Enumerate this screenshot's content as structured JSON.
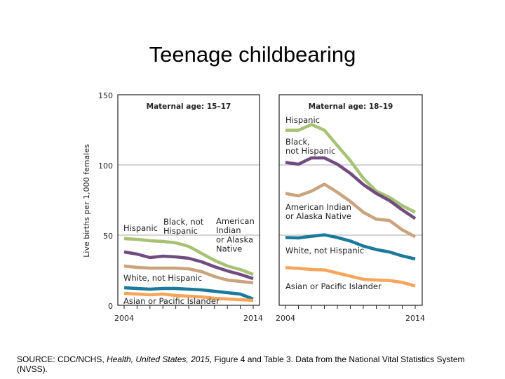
{
  "title": "Teenage childbearing",
  "source": {
    "prefix": "SOURCE: CDC/NCHS, ",
    "italic": "Health, United States, 2015",
    "suffix": ", Figure 4 and Table 3. Data from the National Vital Statistics System (NVSS)."
  },
  "chart_data": {
    "type": "line",
    "ylabel": "Live births per 1,000 females",
    "ylim": [
      0,
      150
    ],
    "yticks": [
      0,
      50,
      100,
      150
    ],
    "xticks": [
      "2004",
      "2014"
    ],
    "grid": true,
    "x": [
      2004,
      2005,
      2006,
      2007,
      2008,
      2009,
      2010,
      2011,
      2012,
      2013,
      2014
    ],
    "colors": {
      "Hispanic": "#a8c274",
      "Black, not Hispanic": "#704c80",
      "American Indian or Alaska Native": "#caa47f",
      "White, not Hispanic": "#1b7a9b",
      "Asian or Pacific Islander": "#f5a65c"
    },
    "panels": [
      {
        "title": "Maternal age: 15–17",
        "series": [
          {
            "name": "Hispanic",
            "label": "Hispanic",
            "values": [
              47.5,
              47,
              46,
              45.5,
              44.5,
              42,
              37,
              32,
              28,
              25.5,
              22
            ]
          },
          {
            "name": "Black, not Hispanic",
            "label": "Black, not\nHispanic",
            "values": [
              38,
              36.5,
              34,
              35,
              34.5,
              33.5,
              31,
              27.5,
              24.5,
              22,
              19
            ]
          },
          {
            "name": "American Indian or Alaska Native",
            "label": "American\nIndian\nor Alaska\nNative",
            "values": [
              28,
              27,
              26.5,
              26.5,
              26.5,
              26,
              24,
              20.5,
              18,
              17,
              16
            ]
          },
          {
            "name": "White, not Hispanic",
            "label": "White, not Hispanic",
            "values": [
              12.5,
              12,
              11.5,
              12,
              12,
              11.5,
              11,
              10,
              9,
              8,
              4.5
            ]
          },
          {
            "name": "Asian or Pacific Islander",
            "label": "Asian or Pacific Islander",
            "values": [
              8.5,
              8,
              7.5,
              8,
              7,
              6.5,
              6,
              5,
              4.5,
              4,
              3.5
            ]
          }
        ]
      },
      {
        "title": "Maternal age: 18–19",
        "series": [
          {
            "name": "Hispanic",
            "label": "Hispanic",
            "values": [
              124.7,
              124.7,
              128.8,
              124.7,
              113.8,
              103,
              90.5,
              81.3,
              77,
              71,
              66.3
            ]
          },
          {
            "name": "Black, not Hispanic",
            "label": "Black,\nnot Hispanic",
            "values": [
              101.8,
              100.5,
              105,
              105,
              100.5,
              94,
              86,
              79.7,
              74.7,
              68,
              61.8
            ]
          },
          {
            "name": "American Indian or Alaska Native",
            "label": "American Indian\nor Alaska Native",
            "values": [
              79.7,
              78,
              81.3,
              86.3,
              80.5,
              74,
              66.3,
              61.3,
              60.5,
              53.8,
              48.8
            ]
          },
          {
            "name": "White, not Hispanic",
            "label": "White, not Hispanic",
            "values": [
              48.3,
              48,
              49.2,
              50.2,
              48.3,
              45.8,
              42.2,
              39.7,
              38,
              35.2,
              33
            ]
          },
          {
            "name": "Asian or Pacific Islander",
            "label": "Asian or Pacific Islander",
            "values": [
              26.8,
              26.3,
              25.5,
              25.2,
              23,
              20.8,
              18.5,
              18,
              17.7,
              16.3,
              13.8
            ]
          }
        ]
      }
    ]
  }
}
